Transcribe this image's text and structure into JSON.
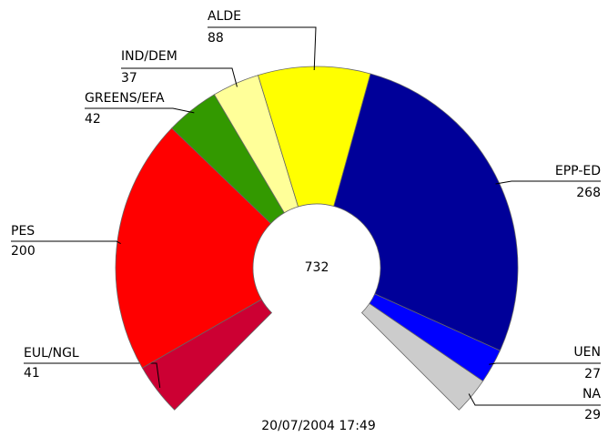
{
  "chart_data": {
    "type": "parliament",
    "categories": [
      "EUL/NGL",
      "PES",
      "GREENS/EFA",
      "IND/DEM",
      "ALDE",
      "EPP-ED",
      "UEN",
      "NA"
    ],
    "values": [
      41,
      200,
      42,
      37,
      88,
      268,
      27,
      29
    ],
    "colors": [
      "#cc0033",
      "#ff0000",
      "#339900",
      "#ffff99",
      "#ffff00",
      "#000099",
      "#0000ff",
      "#cccccc"
    ],
    "total": 732,
    "footer": "20/07/2004 17:49"
  }
}
